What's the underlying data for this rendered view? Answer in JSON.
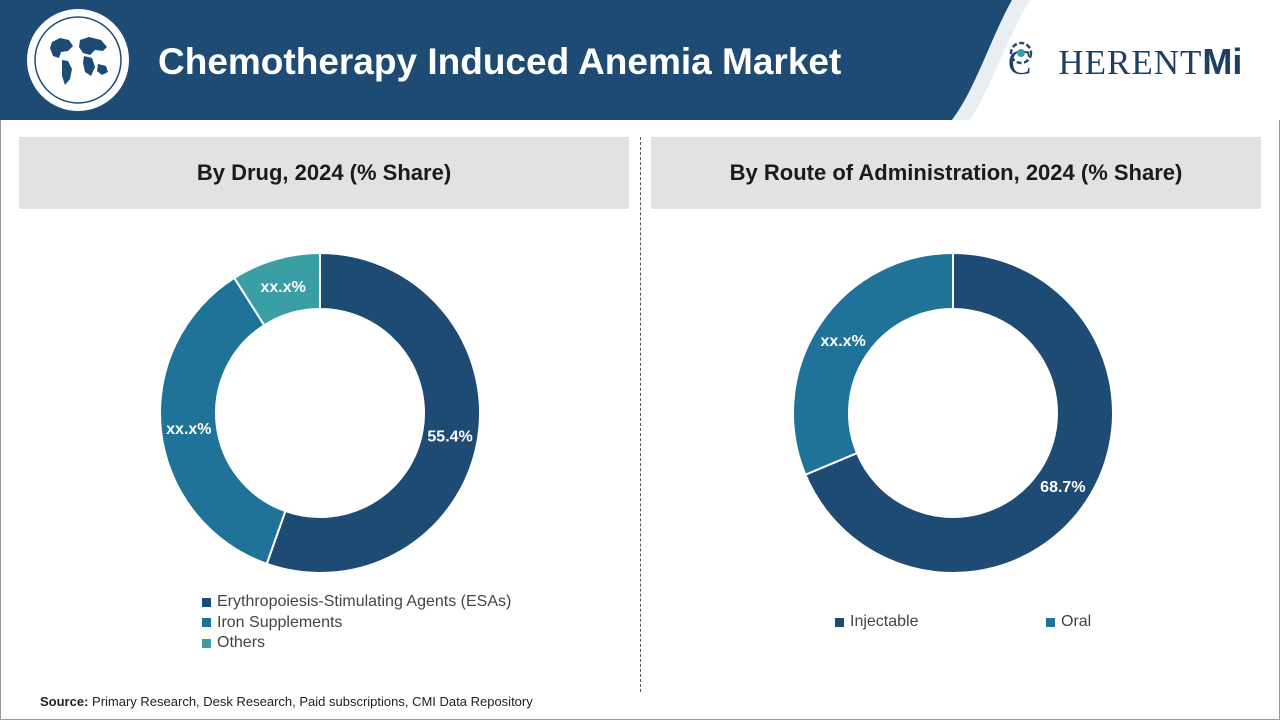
{
  "header": {
    "title": "Chemotherapy Induced Anemia Market",
    "logo_main": "COHERENT",
    "logo_suffix": "Mi",
    "colors": {
      "banner": "#1d4b73",
      "banner_dark": "#173c5e"
    }
  },
  "source": {
    "label": "Source:",
    "text": "Primary Research, Desk Research, Paid subscriptions, CMI Data Repository"
  },
  "chart_data": [
    {
      "type": "pie",
      "variant": "donut",
      "title": "By Drug, 2024 (% Share)",
      "categories": [
        "Erythropoiesis-Stimulating Agents (ESAs)",
        "Iron Supplements",
        "Others"
      ],
      "values": [
        55.4,
        35.6,
        9.0
      ],
      "value_labels": [
        "55.4%",
        "xx.x%",
        "xx.x%"
      ],
      "colors": [
        "#1d4b73",
        "#1f7399",
        "#3a9ea5"
      ],
      "legend_position": "bottom"
    },
    {
      "type": "pie",
      "variant": "donut",
      "title": "By Route of Administration, 2024 (% Share)",
      "categories": [
        "Injectable",
        "Oral"
      ],
      "values": [
        68.7,
        31.3
      ],
      "value_labels": [
        "68.7%",
        "xx.x%"
      ],
      "colors": [
        "#1d4b73",
        "#1f7399"
      ],
      "legend_position": "bottom"
    }
  ]
}
